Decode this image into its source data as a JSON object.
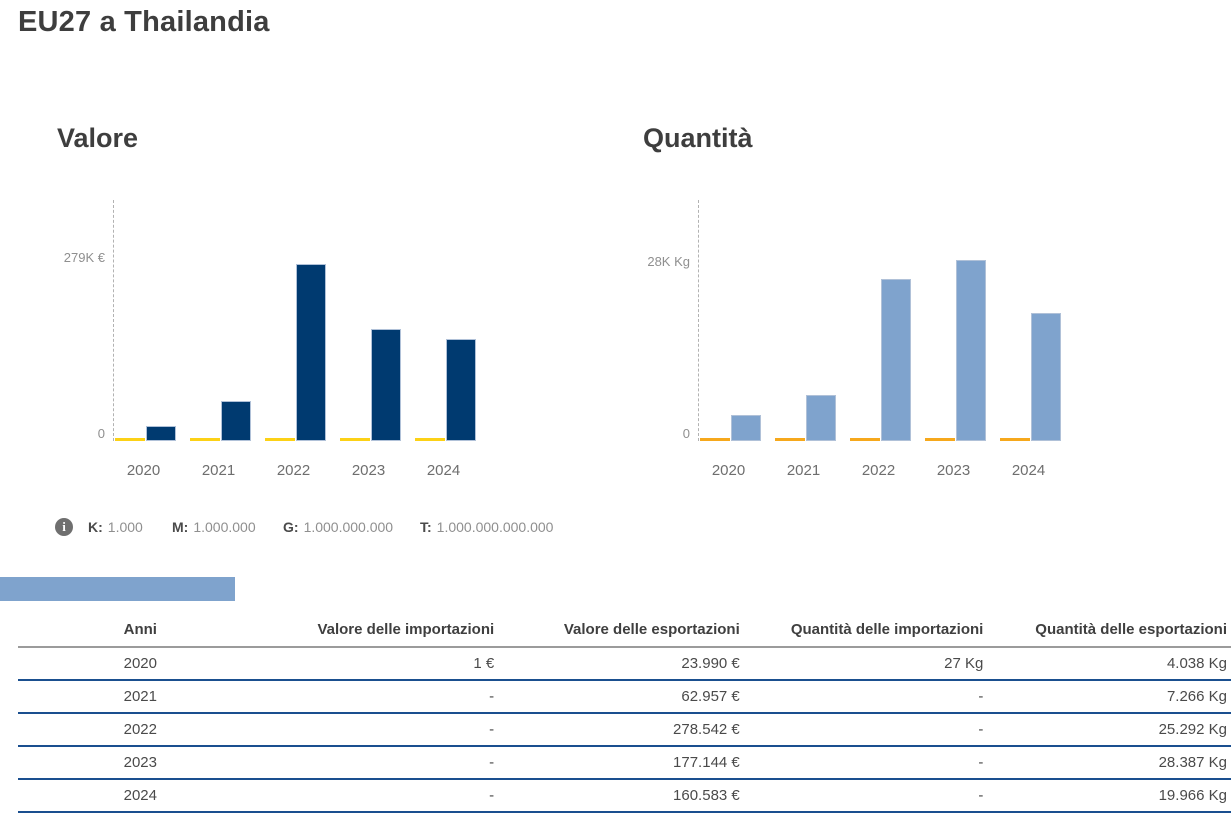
{
  "page": {
    "title": "EU27 a Thailandia"
  },
  "colors": {
    "value_imports_yellow": "#FCD116",
    "value_exports_navy": "#003A70",
    "qty_imports_orange": "#F6A81C",
    "qty_exports_lightblue": "#7FA3CD",
    "row_divider_navy": "#1A4F8F",
    "header_divider_gray": "#9B9B9B"
  },
  "chart_data": [
    {
      "type": "bar",
      "key": "valore",
      "title": "Valore",
      "categories": [
        "2020",
        "2021",
        "2022",
        "2023",
        "2024"
      ],
      "series": [
        {
          "name": "Valore delle importazioni",
          "key": "importazioni",
          "color": "#FCD116",
          "values": [
            1,
            null,
            null,
            null,
            null
          ]
        },
        {
          "name": "Valore delle esportazioni",
          "key": "esportazioni",
          "color": "#003A70",
          "values": [
            23990,
            62957,
            278542,
            177144,
            160583
          ]
        }
      ],
      "ylabel_top": "279K €",
      "ylabel_zero": "0",
      "ylim": [
        0,
        279000
      ],
      "unit": "€",
      "grid": "single-dashed-y-axis",
      "legend_position": "none"
    },
    {
      "type": "bar",
      "key": "quantita",
      "title": "Quantità",
      "categories": [
        "2020",
        "2021",
        "2022",
        "2023",
        "2024"
      ],
      "series": [
        {
          "name": "Quantità delle importazioni",
          "key": "importazioni",
          "color": "#F6A81C",
          "values": [
            27,
            null,
            null,
            null,
            null
          ]
        },
        {
          "name": "Quantità delle esportazioni",
          "key": "esportazioni",
          "color": "#7FA3CD",
          "values": [
            4038,
            7266,
            25292,
            28387,
            19966
          ]
        }
      ],
      "ylabel_top": "28K Kg",
      "ylabel_zero": "0",
      "ylim": [
        0,
        28000
      ],
      "unit": "Kg",
      "grid": "single-dashed-y-axis",
      "legend_position": "none"
    }
  ],
  "info_legend": {
    "icon": "info-icon",
    "icon_glyph": "i",
    "items": [
      {
        "label": "K:",
        "value": "1.000"
      },
      {
        "label": "M:",
        "value": "1.000.000"
      },
      {
        "label": "G:",
        "value": "1.000.000.000"
      },
      {
        "label": "T:",
        "value": "1.000.000.000.000"
      }
    ]
  },
  "legend_swatches": [
    {
      "name": "valore-importazioni",
      "color": "#FCD116"
    },
    {
      "name": "valore-esportazioni",
      "color": "#003A70"
    },
    {
      "name": "quantita-importazioni",
      "color": "#F6A81C"
    },
    {
      "name": "quantita-esportazioni",
      "color": "#7FA3CD"
    }
  ],
  "table": {
    "headers": [
      "Anni",
      "Valore delle importazioni",
      "Valore delle esportazioni",
      "Quantità delle importazioni",
      "Quantità delle esportazioni"
    ],
    "rows": [
      [
        "2020",
        "1 €",
        "23.990 €",
        "27 Kg",
        "4.038 Kg"
      ],
      [
        "2021",
        "-",
        "62.957 €",
        "-",
        "7.266 Kg"
      ],
      [
        "2022",
        "-",
        "278.542 €",
        "-",
        "25.292 Kg"
      ],
      [
        "2023",
        "-",
        "177.144 €",
        "-",
        "28.387 Kg"
      ],
      [
        "2024",
        "-",
        "160.583 €",
        "-",
        "19.966 Kg"
      ]
    ]
  }
}
